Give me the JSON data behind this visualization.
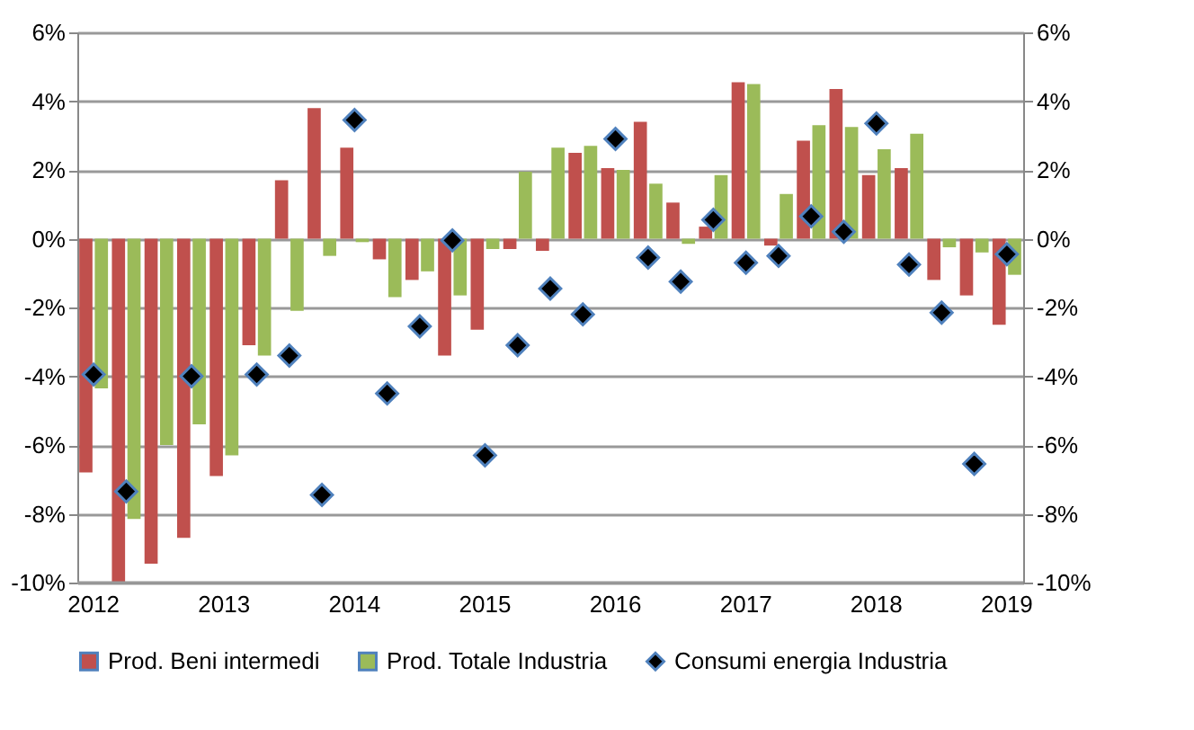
{
  "chart_data": {
    "type": "bar",
    "categories": [
      "2012",
      null,
      null,
      null,
      "2013",
      null,
      null,
      null,
      "2014",
      null,
      null,
      null,
      "2015",
      null,
      null,
      null,
      "2016",
      null,
      null,
      null,
      "2017",
      null,
      null,
      null,
      "2018",
      null,
      null,
      null,
      "2019"
    ],
    "series": [
      {
        "name": "Prod. Beni intermedi",
        "color": "#c0504d",
        "values": [
          -6.8,
          -10.0,
          -9.45,
          -8.7,
          -6.9,
          -3.1,
          1.7,
          3.8,
          2.65,
          -0.6,
          -1.2,
          -3.4,
          -2.65,
          -0.3,
          -0.35,
          2.5,
          2.05,
          3.4,
          1.05,
          0.35,
          4.55,
          -0.2,
          2.85,
          4.35,
          1.85,
          2.05,
          -1.2,
          -1.65,
          -2.5
        ]
      },
      {
        "name": "Prod. Totale Industria",
        "color": "#9bbb59",
        "values": [
          -4.35,
          -8.15,
          -6.0,
          -5.4,
          -6.3,
          -3.4,
          -2.1,
          -0.5,
          -0.1,
          -1.7,
          -0.95,
          -1.65,
          -0.3,
          1.95,
          2.65,
          2.7,
          2.0,
          1.6,
          -0.15,
          1.85,
          4.5,
          1.3,
          3.3,
          3.25,
          2.6,
          3.05,
          -0.25,
          -0.4,
          -1.05
        ]
      },
      {
        "name": "Consumi energia Industria",
        "type": "scatter",
        "marker": "diamond",
        "color": "#000000",
        "values": [
          -3.95,
          -7.35,
          null,
          -4.0,
          null,
          -3.95,
          -3.4,
          -7.45,
          3.45,
          -4.5,
          -2.55,
          -0.05,
          -6.3,
          -3.1,
          -1.45,
          -2.2,
          2.9,
          -0.55,
          -1.25,
          0.55,
          -0.7,
          -0.5,
          0.65,
          0.2,
          3.35,
          -0.75,
          -2.15,
          -6.55,
          -0.45
        ]
      }
    ],
    "ylim": [
      -10,
      6
    ],
    "yticks": [
      {
        "value": -10,
        "label": "-10%"
      },
      {
        "value": -8,
        "label": "-8%"
      },
      {
        "value": -6,
        "label": "-6%"
      },
      {
        "value": -4,
        "label": "-4%"
      },
      {
        "value": -2,
        "label": "-2%"
      },
      {
        "value": 0,
        "label": "0%"
      },
      {
        "value": 2,
        "label": "2%"
      },
      {
        "value": 4,
        "label": "4%"
      },
      {
        "value": 6,
        "label": "6%"
      }
    ],
    "y2lim": [
      -10,
      6
    ],
    "y2ticks": [
      {
        "value": -10,
        "label": "-10%"
      },
      {
        "value": -8,
        "label": "-8%"
      },
      {
        "value": -6,
        "label": "-6%"
      },
      {
        "value": -4,
        "label": "-4%"
      },
      {
        "value": -2,
        "label": "-2%"
      },
      {
        "value": 0,
        "label": "0%"
      },
      {
        "value": 2,
        "label": "2%"
      },
      {
        "value": 4,
        "label": "4%"
      },
      {
        "value": 6,
        "label": "6%"
      }
    ],
    "grid": "y",
    "legend": "bottom"
  }
}
